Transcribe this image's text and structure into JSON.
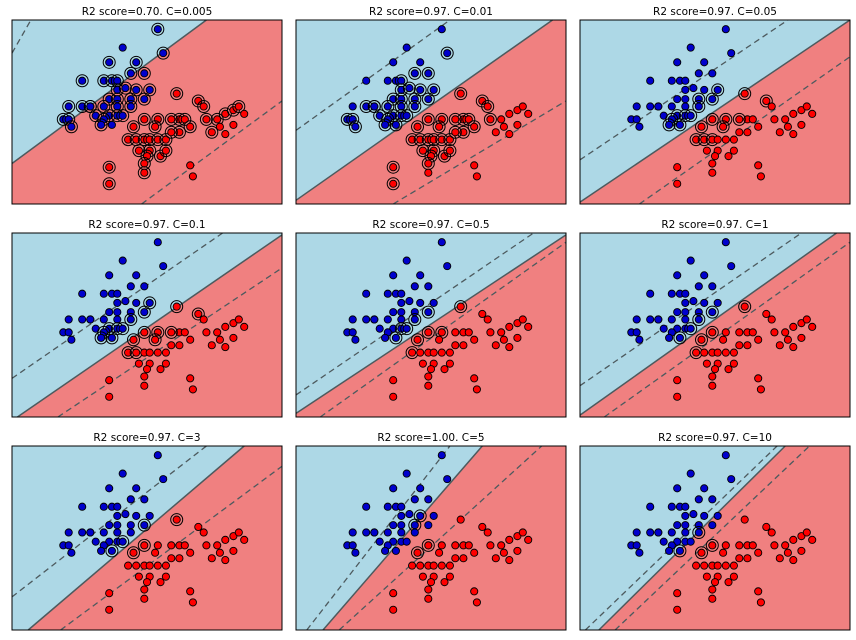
{
  "figure": {
    "colors": {
      "class0_region": "#add8e6",
      "class1_region": "#f08080",
      "class0_point": "#0000cd",
      "class1_point": "#ff0000",
      "boundary": "#4d5a5e",
      "margin": "#4d5a5e"
    }
  },
  "chart_data": [
    {
      "type": "scatter",
      "title": "R2 score=0.70. C=0.005",
      "grid": false,
      "xlim": [
        0,
        1
      ],
      "ylim": [
        0,
        1
      ],
      "boundary": [
        [
          0,
          0.22
        ],
        [
          0.72,
          1
        ]
      ],
      "margins": [
        [
          [
            0,
            0.82
          ],
          [
            0.07,
            1
          ]
        ],
        [
          [
            0.48,
            0
          ],
          [
            1,
            0.56
          ]
        ]
      ],
      "n_support": 68
    },
    {
      "type": "scatter",
      "title": "R2 score=0.97. C=0.01",
      "grid": false,
      "xlim": [
        0,
        1
      ],
      "ylim": [
        0,
        1
      ],
      "boundary": [
        [
          0,
          0.02
        ],
        [
          0.95,
          1
        ]
      ],
      "margins": [
        [
          [
            0,
            0.4
          ],
          [
            0.57,
            1
          ]
        ],
        [
          [
            0.36,
            0
          ],
          [
            1,
            0.56
          ]
        ]
      ],
      "n_support": 56
    },
    {
      "type": "scatter",
      "title": "R2 score=0.97. C=0.05",
      "grid": false,
      "xlim": [
        0,
        1
      ],
      "ylim": [
        0,
        1
      ],
      "boundary": [
        [
          0,
          0.01
        ],
        [
          1,
          1
        ]
      ],
      "margins": [
        [
          [
            0,
            0.24
          ],
          [
            0.77,
            1
          ]
        ],
        [
          [
            0.22,
            0
          ],
          [
            1,
            0.8
          ]
        ]
      ],
      "n_support": 20
    },
    {
      "type": "scatter",
      "title": "R2 score=0.97. C=0.1",
      "grid": false,
      "xlim": [
        0,
        1
      ],
      "ylim": [
        0,
        1
      ],
      "boundary": [
        [
          0.02,
          0
        ],
        [
          1,
          0.99
        ]
      ],
      "margins": [
        [
          [
            0,
            0.21
          ],
          [
            0.78,
            1
          ]
        ],
        [
          [
            0.17,
            0
          ],
          [
            1,
            0.81
          ]
        ]
      ],
      "n_support": 17
    },
    {
      "type": "scatter",
      "title": "R2 score=0.97. C=0.5",
      "grid": false,
      "xlim": [
        0,
        1
      ],
      "ylim": [
        0,
        1
      ],
      "boundary": [
        [
          0,
          0.02
        ],
        [
          1,
          0.99
        ]
      ],
      "margins": [
        [
          [
            0,
            0.12
          ],
          [
            0.88,
            1
          ]
        ],
        [
          [
            0.09,
            0
          ],
          [
            1,
            0.95
          ]
        ]
      ],
      "n_support": 9
    },
    {
      "type": "scatter",
      "title": "R2 score=0.97. C=1",
      "grid": false,
      "xlim": [
        0,
        1
      ],
      "ylim": [
        0,
        1
      ],
      "boundary": [
        [
          0,
          0.01
        ],
        [
          0.95,
          1
        ]
      ],
      "margins": [
        [
          [
            0,
            0.17
          ],
          [
            0.82,
            1
          ]
        ],
        [
          [
            0.09,
            0
          ],
          [
            1,
            0.95
          ]
        ]
      ],
      "n_support": 7
    },
    {
      "type": "scatter",
      "title": "R2 score=0.97. C=3",
      "grid": false,
      "xlim": [
        0,
        1
      ],
      "ylim": [
        0,
        1
      ],
      "boundary": [
        [
          0.06,
          0
        ],
        [
          0.86,
          1
        ]
      ],
      "margins": [
        [
          [
            0,
            0.18
          ],
          [
            0.72,
            1
          ]
        ],
        [
          [
            0.18,
            0
          ],
          [
            1,
            0.89
          ]
        ]
      ],
      "n_support": 6
    },
    {
      "type": "scatter",
      "title": "R2 score=1.00. C=5",
      "grid": false,
      "xlim": [
        0,
        1
      ],
      "ylim": [
        0,
        1
      ],
      "boundary": [
        [
          0.1,
          0
        ],
        [
          0.69,
          1
        ]
      ],
      "margins": [
        [
          [
            0.04,
            0
          ],
          [
            0.57,
            1
          ]
        ],
        [
          [
            0.16,
            0
          ],
          [
            0.91,
            1
          ]
        ]
      ],
      "n_support": 4
    },
    {
      "type": "scatter",
      "title": "R2 score=0.97. C=10",
      "grid": false,
      "xlim": [
        0,
        1
      ],
      "ylim": [
        0,
        1
      ],
      "boundary": [
        [
          0.07,
          0
        ],
        [
          0.76,
          1
        ]
      ],
      "margins": [
        [
          [
            0.02,
            0
          ],
          [
            0.73,
            1
          ]
        ],
        [
          [
            0.13,
            0
          ],
          [
            0.85,
            1
          ]
        ]
      ],
      "n_support": 3
    }
  ],
  "points": {
    "class0": [
      [
        0.54,
        0.95
      ],
      [
        0.41,
        0.85
      ],
      [
        0.56,
        0.82
      ],
      [
        0.36,
        0.77
      ],
      [
        0.46,
        0.77
      ],
      [
        0.26,
        0.67
      ],
      [
        0.34,
        0.67
      ],
      [
        0.37,
        0.67
      ],
      [
        0.39,
        0.67
      ],
      [
        0.44,
        0.71
      ],
      [
        0.49,
        0.71
      ],
      [
        0.39,
        0.62
      ],
      [
        0.42,
        0.63
      ],
      [
        0.46,
        0.62
      ],
      [
        0.51,
        0.62
      ],
      [
        0.36,
        0.57
      ],
      [
        0.39,
        0.57
      ],
      [
        0.44,
        0.57
      ],
      [
        0.49,
        0.57
      ],
      [
        0.21,
        0.53
      ],
      [
        0.26,
        0.53
      ],
      [
        0.29,
        0.53
      ],
      [
        0.34,
        0.53
      ],
      [
        0.39,
        0.53
      ],
      [
        0.44,
        0.53
      ],
      [
        0.36,
        0.48
      ],
      [
        0.39,
        0.48
      ],
      [
        0.31,
        0.48
      ],
      [
        0.19,
        0.46
      ],
      [
        0.21,
        0.46
      ],
      [
        0.34,
        0.46
      ],
      [
        0.22,
        0.42
      ],
      [
        0.33,
        0.43
      ],
      [
        0.37,
        0.43
      ],
      [
        0.41,
        0.48
      ],
      [
        0.29,
        0.53
      ]
    ],
    "class1": [
      [
        0.61,
        0.6
      ],
      [
        0.69,
        0.56
      ],
      [
        0.71,
        0.53
      ],
      [
        0.43,
        0.35
      ],
      [
        0.46,
        0.35
      ],
      [
        0.49,
        0.35
      ],
      [
        0.51,
        0.35
      ],
      [
        0.54,
        0.35
      ],
      [
        0.57,
        0.35
      ],
      [
        0.62,
        0.46
      ],
      [
        0.64,
        0.46
      ],
      [
        0.59,
        0.46
      ],
      [
        0.54,
        0.46
      ],
      [
        0.49,
        0.46
      ],
      [
        0.72,
        0.46
      ],
      [
        0.76,
        0.46
      ],
      [
        0.79,
        0.49
      ],
      [
        0.82,
        0.51
      ],
      [
        0.84,
        0.53
      ],
      [
        0.86,
        0.49
      ],
      [
        0.82,
        0.43
      ],
      [
        0.77,
        0.42
      ],
      [
        0.74,
        0.39
      ],
      [
        0.66,
        0.42
      ],
      [
        0.62,
        0.39
      ],
      [
        0.59,
        0.39
      ],
      [
        0.47,
        0.29
      ],
      [
        0.51,
        0.29
      ],
      [
        0.5,
        0.26
      ],
      [
        0.55,
        0.26
      ],
      [
        0.49,
        0.22
      ],
      [
        0.49,
        0.17
      ],
      [
        0.36,
        0.2
      ],
      [
        0.36,
        0.11
      ],
      [
        0.66,
        0.21
      ],
      [
        0.67,
        0.15
      ],
      [
        0.79,
        0.38
      ],
      [
        0.45,
        0.42
      ],
      [
        0.57,
        0.29
      ],
      [
        0.53,
        0.42
      ]
    ]
  }
}
